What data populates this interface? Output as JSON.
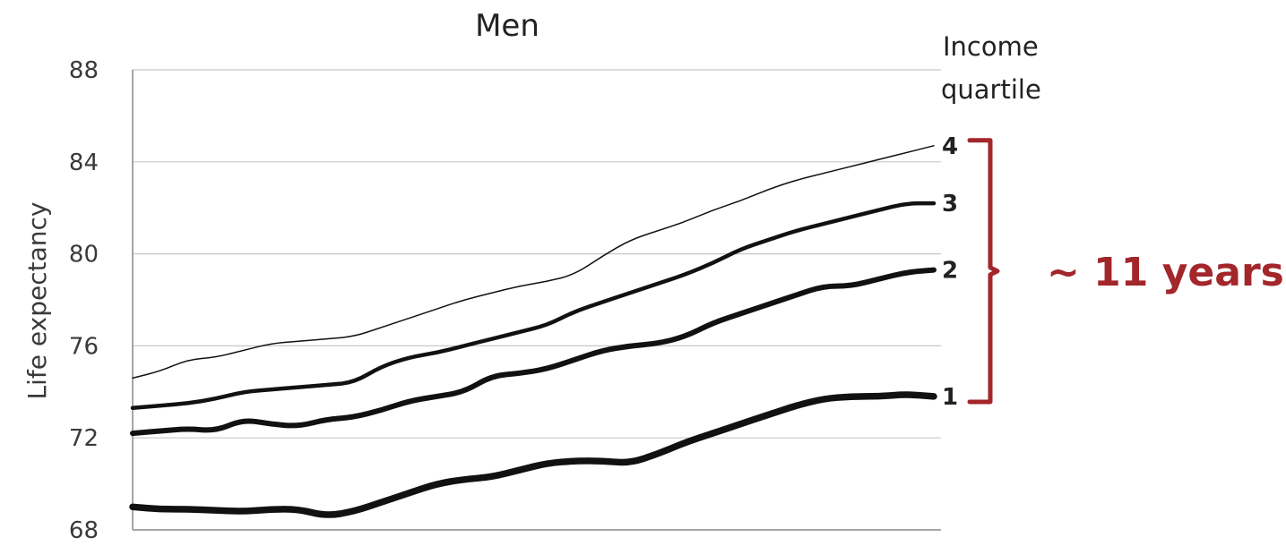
{
  "chart_data": {
    "type": "line",
    "title": "Men",
    "ylabel": "Life expectancy",
    "xlabel": "",
    "ylim": [
      68,
      88
    ],
    "yticks": [
      "68",
      "72",
      "76",
      "80",
      "84",
      "88"
    ],
    "grid": true,
    "legend": {
      "title_lines": [
        "Income",
        "quartile"
      ],
      "placement": "right"
    },
    "series": [
      {
        "name": "4",
        "values": [
          74.6,
          74.9,
          75.4,
          75.5,
          75.8,
          76.1,
          76.2,
          76.3,
          76.4,
          76.8,
          77.2,
          77.6,
          78.0,
          78.3,
          78.6,
          78.8,
          79.1,
          79.9,
          80.6,
          81.0,
          81.4,
          81.9,
          82.3,
          82.8,
          83.2,
          83.5,
          83.8,
          84.1,
          84.4,
          84.7
        ]
      },
      {
        "name": "3",
        "values": [
          73.3,
          73.4,
          73.5,
          73.7,
          74.0,
          74.1,
          74.2,
          74.3,
          74.4,
          75.1,
          75.5,
          75.7,
          76.0,
          76.3,
          76.6,
          76.9,
          77.5,
          77.9,
          78.3,
          78.7,
          79.1,
          79.6,
          80.2,
          80.6,
          81.0,
          81.3,
          81.6,
          81.9,
          82.2,
          82.2
        ]
      },
      {
        "name": "2",
        "values": [
          72.2,
          72.3,
          72.4,
          72.3,
          72.8,
          72.6,
          72.5,
          72.8,
          72.9,
          73.2,
          73.6,
          73.8,
          74.0,
          74.7,
          74.8,
          75.0,
          75.4,
          75.8,
          76.0,
          76.1,
          76.4,
          77.0,
          77.4,
          77.8,
          78.2,
          78.6,
          78.6,
          78.9,
          79.2,
          79.3
        ]
      },
      {
        "name": "1",
        "values": [
          69.0,
          68.9,
          68.9,
          68.85,
          68.8,
          68.9,
          68.9,
          68.6,
          68.8,
          69.2,
          69.6,
          70.0,
          70.2,
          70.3,
          70.6,
          70.9,
          71.0,
          71.0,
          70.9,
          71.3,
          71.8,
          72.2,
          72.6,
          73.0,
          73.4,
          73.7,
          73.8,
          73.8,
          73.9,
          73.8
        ]
      }
    ],
    "annotation": {
      "text": "~ 11 years",
      "color": "#a3262a",
      "from_series": "1",
      "to_series": "4"
    },
    "colors": {
      "line": "#111111",
      "grid": "#c8c8c8",
      "axis": "#8a8a8a"
    }
  }
}
